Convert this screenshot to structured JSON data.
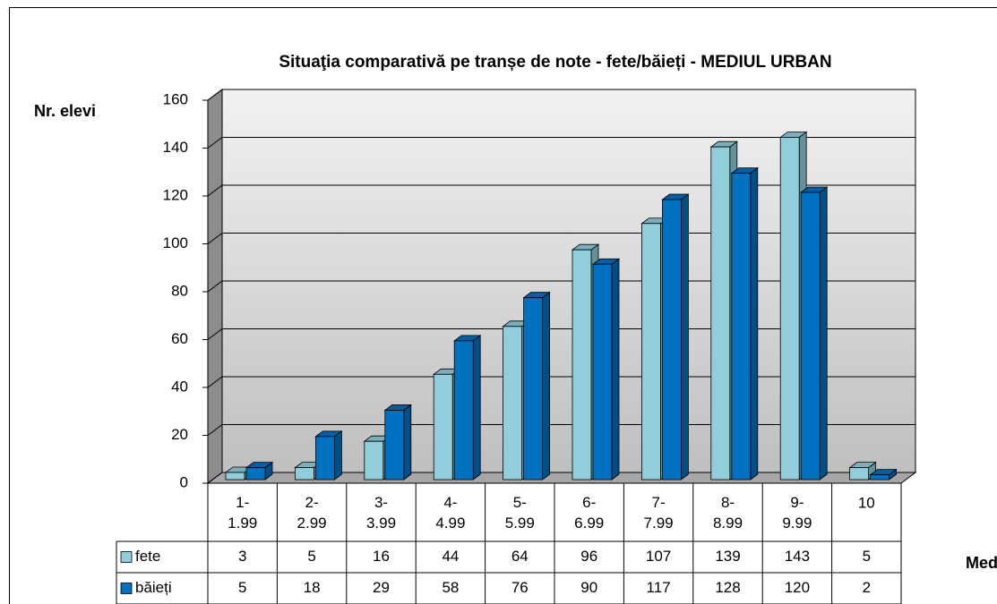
{
  "chart_data": {
    "type": "bar3d",
    "title": "Situaţia comparativă pe tranșe de note - fete/băieți - MEDIUL URBAN",
    "y_label": "Nr. elevi",
    "x_label": "Medii",
    "categories": [
      "1-1.99",
      "2-2.99",
      "3-3.99",
      "4-4.99",
      "5-5.99",
      "6-6.99",
      "7-7.99",
      "8-8.99",
      "9-9.99",
      "10"
    ],
    "series": [
      {
        "name": "fete",
        "color": "#92cddc",
        "values": [
          3,
          5,
          16,
          44,
          64,
          96,
          107,
          139,
          143,
          5
        ]
      },
      {
        "name": "băieți",
        "color": "#0070c0",
        "values": [
          5,
          18,
          29,
          58,
          76,
          90,
          117,
          128,
          120,
          2
        ]
      }
    ],
    "ylim": [
      0,
      160
    ],
    "yticks": [
      0,
      20,
      40,
      60,
      80,
      100,
      120,
      140,
      160
    ],
    "grid": true
  }
}
